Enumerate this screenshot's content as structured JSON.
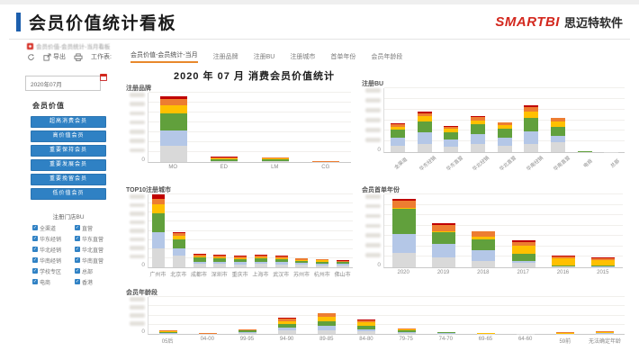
{
  "header": {
    "title": "会员价值统计看板",
    "brand": "SMARTBI",
    "brand_suffix": "思迈特软件"
  },
  "breadcrumb": {
    "label": "会员价值-会员统计-当月看板"
  },
  "toolbar": {
    "export_label": "导出",
    "worksheet_label": "工作表:",
    "tabs": [
      {
        "label": "会员价值-会员统计-当月",
        "active": true
      },
      {
        "label": "注册品牌",
        "active": false
      },
      {
        "label": "注册BU",
        "active": false
      },
      {
        "label": "注册城市",
        "active": false
      },
      {
        "label": "首单年份",
        "active": false
      },
      {
        "label": "会员年龄段",
        "active": false
      }
    ]
  },
  "sidebar": {
    "date_value": "2020年07月",
    "section_label": "会员价值",
    "value_buttons": [
      "超高消费会员",
      "高价值会员",
      "重要保持会员",
      "重要发展会员",
      "重要挽留会员",
      "低价值会员"
    ],
    "bu_filter": {
      "title": "注册门店BU",
      "options": [
        "全渠道",
        "直营",
        "华东经销",
        "华东直营",
        "华北经销",
        "华北直营",
        "华南经销",
        "华南直营",
        "学校专区",
        "总部",
        "电商",
        "香港"
      ]
    }
  },
  "main": {
    "title": "2020 年 07 月 消费会员价值统计"
  },
  "colors": {
    "accent_blue": "#1d5fad",
    "brand_red": "#d3281e",
    "tab_active_orange": "#e8882c",
    "button_blue": "#2f81c4",
    "bar_palette": [
      "#d9d9d9",
      "#b4c7e7",
      "#61a03c",
      "#ffc000",
      "#ed7d31",
      "#c00000"
    ]
  },
  "chart_data": [
    {
      "type": "bar",
      "stacked": true,
      "title": "注册品牌",
      "zero_label": "0",
      "categories": [
        "MO",
        "ED",
        "LM",
        "CG"
      ],
      "ylim": [
        0,
        100
      ],
      "rotate_labels": false,
      "series": [
        {
          "name": "低价值会员",
          "color": "#d9d9d9",
          "values": [
            24,
            0.8,
            0.8,
            0.2
          ]
        },
        {
          "name": "重要挽留会员",
          "color": "#b4c7e7",
          "values": [
            21,
            0.6,
            0.6,
            0.1
          ]
        },
        {
          "name": "重要发展会员",
          "color": "#61a03c",
          "values": [
            25,
            3.0,
            2.6,
            0.3
          ]
        },
        {
          "name": "重要保持会员",
          "color": "#ffc000",
          "values": [
            12,
            1.2,
            1.0,
            0.1
          ]
        },
        {
          "name": "高价值会员",
          "color": "#ed7d31",
          "values": [
            9,
            1.6,
            1.4,
            0.2
          ]
        },
        {
          "name": "超高消费会员",
          "color": "#c00000",
          "values": [
            4,
            0.4,
            0.4,
            0.1
          ]
        }
      ]
    },
    {
      "type": "bar",
      "stacked": true,
      "title": "注册BU",
      "zero_label": "0",
      "categories": [
        "全渠道",
        "华东经销",
        "华东直营",
        "华北经销",
        "华北直营",
        "华南经销",
        "华南直营",
        "电商",
        "总部"
      ],
      "ylim": [
        0,
        100
      ],
      "rotate_labels": true,
      "series": [
        {
          "name": "低价值会员",
          "color": "#d9d9d9",
          "values": [
            10,
            13,
            9,
            12,
            10,
            13,
            15,
            0.3,
            0.2
          ]
        },
        {
          "name": "重要挽留会员",
          "color": "#b4c7e7",
          "values": [
            12,
            18,
            11,
            16,
            13,
            20,
            11,
            0.2,
            0.1
          ]
        },
        {
          "name": "重要发展会员",
          "color": "#61a03c",
          "values": [
            13,
            17,
            11,
            15,
            13,
            21,
            14,
            0.3,
            0.1
          ]
        },
        {
          "name": "重要保持会员",
          "color": "#ffc000",
          "values": [
            5,
            8,
            5,
            7,
            6,
            10,
            8,
            0.2,
            0.1
          ]
        },
        {
          "name": "高价值会员",
          "color": "#ed7d31",
          "values": [
            4,
            5,
            4,
            5,
            4,
            7,
            5,
            0.4,
            0.1
          ]
        },
        {
          "name": "超高消费会员",
          "color": "#c00000",
          "values": [
            1,
            2,
            1,
            1,
            1,
            3,
            1,
            0.6,
            0.1
          ]
        }
      ]
    },
    {
      "type": "bar",
      "stacked": true,
      "title": "TOP10注册城市",
      "zero_label": "0",
      "categories": [
        "广州市",
        "北京市",
        "成都市",
        "深圳市",
        "重庆市",
        "上海市",
        "武汉市",
        "苏州市",
        "杭州市",
        "佛山市"
      ],
      "ylim": [
        0,
        100
      ],
      "rotate_labels": false,
      "series": [
        {
          "name": "低价值会员",
          "color": "#d9d9d9",
          "values": [
            26,
            16,
            5,
            5,
            4,
            5,
            4,
            4,
            3,
            3
          ]
        },
        {
          "name": "重要挽留会员",
          "color": "#b4c7e7",
          "values": [
            22,
            10,
            3,
            3,
            3,
            3,
            3,
            2,
            2,
            2
          ]
        },
        {
          "name": "重要发展会员",
          "color": "#61a03c",
          "values": [
            26,
            12,
            5,
            4,
            4,
            4,
            4,
            3,
            3,
            2
          ]
        },
        {
          "name": "重要保持会员",
          "color": "#ffc000",
          "values": [
            12,
            5,
            2,
            2,
            2,
            2,
            2,
            1.5,
            1.5,
            1
          ]
        },
        {
          "name": "高价值会员",
          "color": "#ed7d31",
          "values": [
            8,
            4,
            2,
            2,
            2,
            2,
            2,
            1.5,
            1.5,
            1
          ]
        },
        {
          "name": "超高消费会员",
          "color": "#c00000",
          "values": [
            6,
            1,
            1,
            1,
            1,
            1,
            1,
            0.5,
            0.5,
            0.5
          ]
        }
      ]
    },
    {
      "type": "bar",
      "stacked": true,
      "title": "会员首单年份",
      "zero_label": "0",
      "categories": [
        "2020",
        "2019",
        "2018",
        "2017",
        "2016",
        "2015"
      ],
      "ylim": [
        0,
        100
      ],
      "rotate_labels": false,
      "series": [
        {
          "name": "低价值会员",
          "color": "#d9d9d9",
          "values": [
            20,
            13,
            9,
            6,
            1,
            0.5
          ]
        },
        {
          "name": "重要挽留会员",
          "color": "#b4c7e7",
          "values": [
            26,
            19,
            15,
            3,
            0.5,
            0.5
          ]
        },
        {
          "name": "重要发展会员",
          "color": "#61a03c",
          "values": [
            34,
            16,
            14,
            9,
            1,
            1
          ]
        },
        {
          "name": "重要保持会员",
          "color": "#ffc000",
          "values": [
            2,
            2,
            4,
            12,
            10,
            8
          ]
        },
        {
          "name": "高价值会员",
          "color": "#ed7d31",
          "values": [
            9,
            8,
            7,
            5,
            3,
            3
          ]
        },
        {
          "name": "超高消费会员",
          "color": "#c00000",
          "values": [
            3,
            2,
            1,
            2,
            0.5,
            0.5
          ]
        }
      ]
    },
    {
      "type": "bar",
      "stacked": true,
      "title": "会员年龄段",
      "zero_label": "0",
      "categories": [
        "05后",
        "04-00",
        "99-95",
        "94-90",
        "89-85",
        "84-80",
        "79-75",
        "74-70",
        "69-65",
        "64-60",
        "59前",
        "无法确定年龄"
      ],
      "ylim": [
        0,
        100
      ],
      "rotate_labels": false,
      "series": [
        {
          "name": "低价值会员",
          "color": "#d9d9d9",
          "values": [
            1,
            0.3,
            2,
            9,
            11,
            7,
            2.5,
            1,
            0.3,
            0.2,
            0.4,
            1
          ]
        },
        {
          "name": "重要挽留会员",
          "color": "#b4c7e7",
          "values": [
            1,
            0.2,
            2,
            7,
            10,
            6,
            2.5,
            1,
            0.3,
            0.2,
            0.2,
            0.5
          ]
        },
        {
          "name": "重要发展会员",
          "color": "#61a03c",
          "values": [
            4,
            0.5,
            5,
            10,
            13,
            9,
            4,
            2,
            0.6,
            0.2,
            0.6,
            2
          ]
        },
        {
          "name": "重要保持会员",
          "color": "#ffc000",
          "values": [
            1.5,
            0.3,
            1.5,
            9,
            12,
            9,
            3,
            1,
            0.4,
            0.2,
            2,
            1.5
          ]
        },
        {
          "name": "高价值会员",
          "color": "#ed7d31",
          "values": [
            1.5,
            0.5,
            1.5,
            7,
            9,
            6,
            2.5,
            1,
            0.4,
            0.2,
            2,
            1.5
          ]
        },
        {
          "name": "超高消费会员",
          "color": "#c00000",
          "values": [
            0.2,
            0.2,
            0.2,
            1,
            2,
            1,
            0.5,
            0.1,
            0.1,
            0.1,
            0.1,
            0.1
          ]
        }
      ]
    }
  ]
}
